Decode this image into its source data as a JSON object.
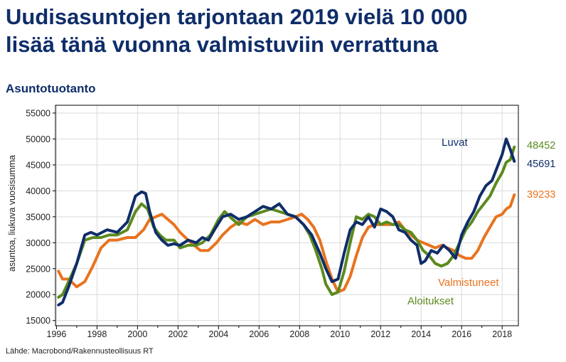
{
  "headline": {
    "line1": "Uudisasuntojen tarjontaan 2019 vielä 10 000",
    "line2": "lisää tänä vuonna valmistuviin verrattuna"
  },
  "section_title": "Asuntotuotanto",
  "source": "Lähde: Macrobond/Rakennusteollisuus RT",
  "chart_data": {
    "type": "line",
    "ylabel": "asuntoa, liukuva vuosisumma",
    "xlim": [
      1995.95,
      2018.8
    ],
    "ylim": [
      14000,
      56500
    ],
    "x_ticks": [
      1996,
      1998,
      2000,
      2002,
      2004,
      2006,
      2008,
      2010,
      2012,
      2014,
      2016,
      2018
    ],
    "x_tick_labels": [
      "1996",
      "1998",
      "2000",
      "2002",
      "2004",
      "2006",
      "2008",
      "2010",
      "2012",
      "2014",
      "2016",
      "2018"
    ],
    "y_ticks": [
      15000,
      20000,
      25000,
      30000,
      35000,
      40000,
      45000,
      50000,
      55000
    ],
    "y_tick_labels": [
      "15000",
      "20000",
      "25000",
      "30000",
      "35000",
      "40000",
      "45000",
      "50000",
      "55000"
    ],
    "grid": true,
    "series": [
      {
        "name": "Luvat",
        "color": "#0f2d69",
        "end_value": "45691",
        "x": [
          1996.1,
          1996.3,
          1996.6,
          1997.0,
          1997.4,
          1997.7,
          1998.0,
          1998.5,
          1999.0,
          1999.5,
          1999.9,
          2000.2,
          2000.4,
          2000.6,
          2000.9,
          2001.2,
          2001.5,
          2001.8,
          2002.1,
          2002.5,
          2002.9,
          2003.2,
          2003.5,
          2003.8,
          2004.2,
          2004.6,
          2005.0,
          2005.4,
          2005.8,
          2006.2,
          2006.6,
          2007.0,
          2007.4,
          2007.8,
          2008.2,
          2008.6,
          2009.0,
          2009.3,
          2009.6,
          2009.9,
          2010.2,
          2010.5,
          2010.8,
          2011.1,
          2011.4,
          2011.7,
          2012.0,
          2012.3,
          2012.6,
          2012.9,
          2013.2,
          2013.5,
          2013.8,
          2014.0,
          2014.2,
          2014.5,
          2014.8,
          2015.1,
          2015.4,
          2015.7,
          2016.0,
          2016.3,
          2016.6,
          2016.9,
          2017.2,
          2017.5,
          2017.8,
          2018.0,
          2018.2,
          2018.4,
          2018.6
        ],
        "y": [
          18000,
          18500,
          21500,
          26000,
          31500,
          32000,
          31500,
          32500,
          32000,
          34000,
          39000,
          39800,
          39500,
          36000,
          32000,
          30500,
          29500,
          29800,
          29500,
          30500,
          30000,
          31000,
          30500,
          32500,
          35000,
          35500,
          34500,
          35000,
          36000,
          37000,
          36500,
          37500,
          35500,
          35000,
          33500,
          31500,
          28000,
          25000,
          22500,
          23000,
          28000,
          32500,
          34000,
          33500,
          35000,
          33000,
          36500,
          36000,
          35000,
          32500,
          32000,
          30500,
          29500,
          26000,
          26500,
          28500,
          28000,
          29500,
          28500,
          27000,
          31500,
          34000,
          36000,
          39000,
          41000,
          42000,
          45000,
          47000,
          50000,
          48000,
          45691
        ]
      },
      {
        "name": "Aloitukset",
        "color": "#5b8a1e",
        "end_value": "48452",
        "x": [
          1996.1,
          1996.3,
          1996.6,
          1997.0,
          1997.4,
          1997.8,
          1998.2,
          1998.6,
          1999.0,
          1999.5,
          1999.9,
          2000.2,
          2000.5,
          2000.8,
          2001.1,
          2001.4,
          2001.8,
          2002.1,
          2002.5,
          2002.9,
          2003.2,
          2003.6,
          2004.0,
          2004.3,
          2004.7,
          2005.0,
          2005.4,
          2005.8,
          2006.2,
          2006.6,
          2007.0,
          2007.4,
          2007.8,
          2008.2,
          2008.5,
          2008.8,
          2009.1,
          2009.3,
          2009.6,
          2009.9,
          2010.2,
          2010.5,
          2010.8,
          2011.1,
          2011.4,
          2011.7,
          2012.0,
          2012.3,
          2012.6,
          2012.9,
          2013.2,
          2013.5,
          2013.8,
          2014.1,
          2014.4,
          2014.7,
          2015.0,
          2015.3,
          2015.6,
          2015.9,
          2016.2,
          2016.5,
          2016.8,
          2017.1,
          2017.4,
          2017.7,
          2018.0,
          2018.2,
          2018.4,
          2018.6
        ],
        "y": [
          19500,
          20000,
          22500,
          26000,
          30500,
          31000,
          31000,
          31500,
          31500,
          32500,
          36000,
          37500,
          36500,
          33000,
          31500,
          30500,
          30500,
          29000,
          29500,
          29500,
          30000,
          31500,
          34500,
          36000,
          34500,
          33500,
          35000,
          35500,
          36000,
          36500,
          36000,
          35500,
          35000,
          33500,
          31500,
          28500,
          25000,
          22000,
          20000,
          20500,
          24500,
          30000,
          35000,
          34500,
          35500,
          35000,
          33500,
          34000,
          33500,
          33500,
          32500,
          32000,
          30500,
          28500,
          27500,
          26000,
          25500,
          26000,
          27500,
          30000,
          32500,
          34000,
          36000,
          37500,
          39000,
          41500,
          43500,
          45500,
          46000,
          48452
        ]
      },
      {
        "name": "Valmistuneet",
        "color": "#e8731e",
        "end_value": "39233",
        "x": [
          1996.1,
          1996.3,
          1996.6,
          1997.0,
          1997.4,
          1997.8,
          1998.2,
          1998.6,
          1999.0,
          1999.5,
          1999.9,
          2000.3,
          2000.6,
          2000.9,
          2001.2,
          2001.5,
          2001.8,
          2002.1,
          2002.5,
          2002.8,
          2003.1,
          2003.5,
          2003.9,
          2004.2,
          2004.6,
          2005.0,
          2005.4,
          2005.8,
          2006.2,
          2006.6,
          2007.0,
          2007.4,
          2007.8,
          2008.1,
          2008.4,
          2008.7,
          2009.0,
          2009.3,
          2009.6,
          2009.9,
          2010.2,
          2010.5,
          2010.8,
          2011.1,
          2011.4,
          2011.7,
          2012.0,
          2012.3,
          2012.6,
          2012.9,
          2013.2,
          2013.5,
          2013.8,
          2014.1,
          2014.4,
          2014.7,
          2015.0,
          2015.3,
          2015.6,
          2015.9,
          2016.2,
          2016.5,
          2016.8,
          2017.1,
          2017.4,
          2017.7,
          2018.0,
          2018.2,
          2018.4,
          2018.6
        ],
        "y": [
          24500,
          23000,
          23000,
          21500,
          22500,
          25500,
          29000,
          30500,
          30500,
          31000,
          31000,
          32500,
          34500,
          35000,
          35500,
          34500,
          33500,
          32000,
          30500,
          29500,
          28500,
          28500,
          30000,
          31500,
          33000,
          34000,
          33500,
          34500,
          33500,
          34000,
          34000,
          34500,
          35000,
          35500,
          34500,
          33000,
          30500,
          26500,
          23000,
          20500,
          21000,
          23500,
          27500,
          31000,
          33000,
          33500,
          33500,
          33500,
          33500,
          34000,
          32500,
          31500,
          30500,
          30000,
          29500,
          29000,
          29500,
          29000,
          28500,
          27500,
          27000,
          27000,
          28500,
          31000,
          33000,
          35000,
          35500,
          36500,
          37000,
          39233
        ]
      }
    ]
  }
}
